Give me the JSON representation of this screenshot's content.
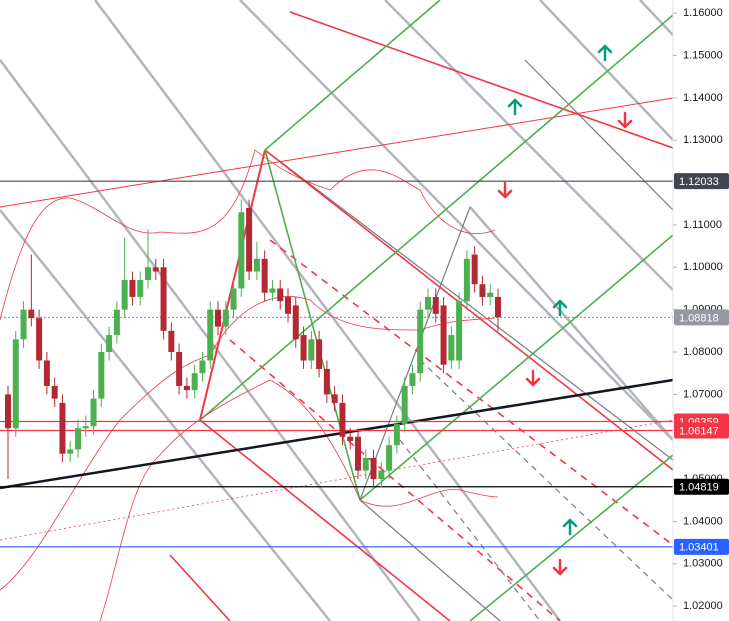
{
  "chart_data": {
    "type": "candlestick",
    "open": [
      1.07,
      1.062,
      1.083,
      1.09,
      1.088,
      1.078,
      1.072,
      1.068,
      1.056,
      1.057,
      1.062,
      1.0625,
      1.069,
      1.08,
      1.084,
      1.09,
      1.097,
      1.093,
      1.097,
      1.1,
      1.1,
      1.085,
      1.08,
      1.072,
      1.071,
      1.075,
      1.078,
      1.09,
      1.086,
      1.09,
      1.095,
      1.114,
      1.099,
      1.102,
      1.094,
      1.095,
      1.093,
      1.091,
      1.084,
      1.078,
      1.083,
      1.076,
      1.07,
      1.068,
      1.06,
      1.06,
      1.052,
      1.055,
      1.05,
      1.052,
      1.058,
      1.063,
      1.072,
      1.075,
      1.09,
      1.093,
      1.091,
      1.078,
      1.078,
      1.092,
      1.103,
      1.096,
      1.093,
      1.093
    ],
    "high": [
      1.072,
      1.085,
      1.092,
      1.103,
      1.09,
      1.08,
      1.074,
      1.07,
      1.059,
      1.064,
      1.065,
      1.071,
      1.082,
      1.086,
      1.092,
      1.107,
      1.099,
      1.099,
      1.109,
      1.102,
      1.102,
      1.087,
      1.082,
      1.074,
      1.077,
      1.08,
      1.092,
      1.092,
      1.092,
      1.097,
      1.116,
      1.116,
      1.106,
      1.104,
      1.097,
      1.097,
      1.095,
      1.093,
      1.086,
      1.085,
      1.085,
      1.078,
      1.072,
      1.07,
      1.062,
      1.062,
      1.057,
      1.057,
      1.054,
      1.06,
      1.065,
      1.074,
      1.077,
      1.092,
      1.095,
      1.095,
      1.093,
      1.086,
      1.094,
      1.104,
      1.105,
      1.098,
      1.096,
      1.095
    ],
    "low": [
      1.05,
      1.06,
      1.081,
      1.086,
      1.076,
      1.07,
      1.067,
      1.054,
      1.054,
      1.055,
      1.06,
      1.0605,
      1.067,
      1.078,
      1.082,
      1.088,
      1.091,
      1.091,
      1.095,
      1.097,
      1.083,
      1.078,
      1.07,
      1.069,
      1.069,
      1.073,
      1.076,
      1.084,
      1.084,
      1.088,
      1.093,
      1.097,
      1.097,
      1.092,
      1.092,
      1.09,
      1.087,
      1.081,
      1.076,
      1.076,
      1.074,
      1.068,
      1.066,
      1.058,
      1.057,
      1.05,
      1.05,
      1.048,
      1.048,
      1.05,
      1.056,
      1.061,
      1.07,
      1.073,
      1.088,
      1.087,
      1.075,
      1.076,
      1.076,
      1.09,
      1.094,
      1.091,
      1.091,
      1.085
    ],
    "close": [
      1.062,
      1.083,
      1.09,
      1.088,
      1.078,
      1.072,
      1.069,
      1.056,
      1.057,
      1.062,
      1.0625,
      1.069,
      1.08,
      1.084,
      1.09,
      1.097,
      1.093,
      1.097,
      1.1,
      1.099,
      1.085,
      1.08,
      1.072,
      1.071,
      1.075,
      1.078,
      1.09,
      1.086,
      1.09,
      1.095,
      1.113,
      1.099,
      1.102,
      1.094,
      1.095,
      1.092,
      1.089,
      1.083,
      1.078,
      1.083,
      1.076,
      1.07,
      1.068,
      1.06,
      1.059,
      1.052,
      1.055,
      1.05,
      1.052,
      1.058,
      1.063,
      1.072,
      1.075,
      1.09,
      1.093,
      1.089,
      1.077,
      1.084,
      1.092,
      1.102,
      1.096,
      1.093,
      1.094,
      1.0882
    ],
    "up_color": "#4caf50",
    "down_color": "#b22833",
    "ylim": [
      1.0165,
      1.1631
    ],
    "yticks": [
      {
        "value": 1.16,
        "label": "1.16000"
      },
      {
        "value": 1.15,
        "label": "1.15000"
      },
      {
        "value": 1.14,
        "label": "1.14000"
      },
      {
        "value": 1.13,
        "label": "1.13000"
      },
      {
        "value": 1.11,
        "label": "1.11000"
      },
      {
        "value": 1.1,
        "label": "1.10000"
      },
      {
        "value": 1.09,
        "label": "1.09000"
      },
      {
        "value": 1.08,
        "label": "1.08000"
      },
      {
        "value": 1.07,
        "label": "1.07000"
      },
      {
        "value": 1.05,
        "label": "1.05000"
      },
      {
        "value": 1.04,
        "label": "1.04000"
      },
      {
        "value": 1.03,
        "label": "1.03000"
      },
      {
        "value": 1.02,
        "label": "1.02000"
      }
    ],
    "price_lines": [
      {
        "value": 1.12033,
        "color": "#434651"
      },
      {
        "value": 1.08818,
        "color": "#9598a1"
      },
      {
        "value": 1.06359,
        "color": "#f23645"
      },
      {
        "value": 1.06147,
        "color": "#f23645"
      },
      {
        "value": 1.04819,
        "color": "#000000"
      },
      {
        "value": 1.03401,
        "color": "#2962ff"
      }
    ]
  }
}
